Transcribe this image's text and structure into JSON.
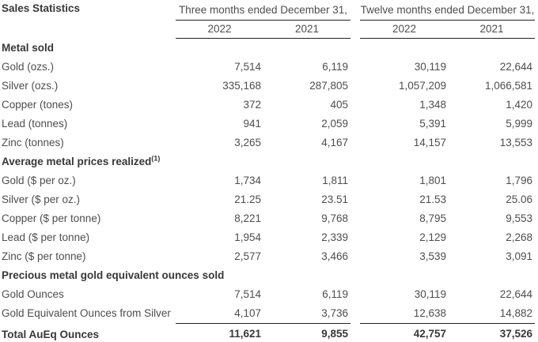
{
  "title": "Sales Statistics",
  "groups": [
    {
      "label": "Three months ended December 31,",
      "years": [
        "2022",
        "2021"
      ]
    },
    {
      "label": "Twelve months ended December 31,",
      "years": [
        "2022",
        "2021"
      ]
    }
  ],
  "rows": [
    {
      "type": "section",
      "label": "Metal sold"
    },
    {
      "type": "data",
      "label": "Gold (ozs.)",
      "values": [
        "7,514",
        "6,119",
        "30,119",
        "22,644"
      ]
    },
    {
      "type": "data",
      "label": "Silver (ozs.)",
      "values": [
        "335,168",
        "287,805",
        "1,057,209",
        "1,066,581"
      ]
    },
    {
      "type": "data",
      "label": "Copper (tones)",
      "values": [
        "372",
        "405",
        "1,348",
        "1,420"
      ]
    },
    {
      "type": "data",
      "label": "Lead (tonnes)",
      "values": [
        "941",
        "2,059",
        "5,391",
        "5,999"
      ]
    },
    {
      "type": "data",
      "label": "Zinc (tonnes)",
      "values": [
        "3,265",
        "4,167",
        "14,157",
        "13,553"
      ]
    },
    {
      "type": "section",
      "label": "Average metal prices realized",
      "sup": "(1)"
    },
    {
      "type": "data",
      "label": "Gold ($ per oz.)",
      "values": [
        "1,734",
        "1,811",
        "1,801",
        "1,796"
      ]
    },
    {
      "type": "data",
      "label": "Silver ($ per oz.)",
      "values": [
        "21.25",
        "23.51",
        "21.53",
        "25.06"
      ]
    },
    {
      "type": "data",
      "label": "Copper ($ per tonne)",
      "values": [
        "8,221",
        "9,768",
        "8,795",
        "9,553"
      ]
    },
    {
      "type": "data",
      "label": "Lead ($ per tonne)",
      "values": [
        "1,954",
        "2,339",
        "2,129",
        "2,268"
      ]
    },
    {
      "type": "data",
      "label": "Zinc ($ per tonne)",
      "values": [
        "2,577",
        "3,466",
        "3,539",
        "3,091"
      ]
    },
    {
      "type": "section",
      "label": "Precious metal gold equivalent ounces sold"
    },
    {
      "type": "data",
      "label": "Gold Ounces",
      "values": [
        "7,514",
        "6,119",
        "30,119",
        "22,644"
      ]
    },
    {
      "type": "data",
      "label": "Gold Equivalent Ounces from Silver",
      "values": [
        "4,107",
        "3,736",
        "12,638",
        "14,882"
      ]
    },
    {
      "type": "total",
      "label": "Total AuEq Ounces",
      "values": [
        "11,621",
        "9,855",
        "42,757",
        "37,526"
      ]
    }
  ],
  "colors": {
    "background": "#ffffff",
    "text": "#4d4d4d",
    "bold_text": "#383838",
    "rule": "#222222"
  }
}
